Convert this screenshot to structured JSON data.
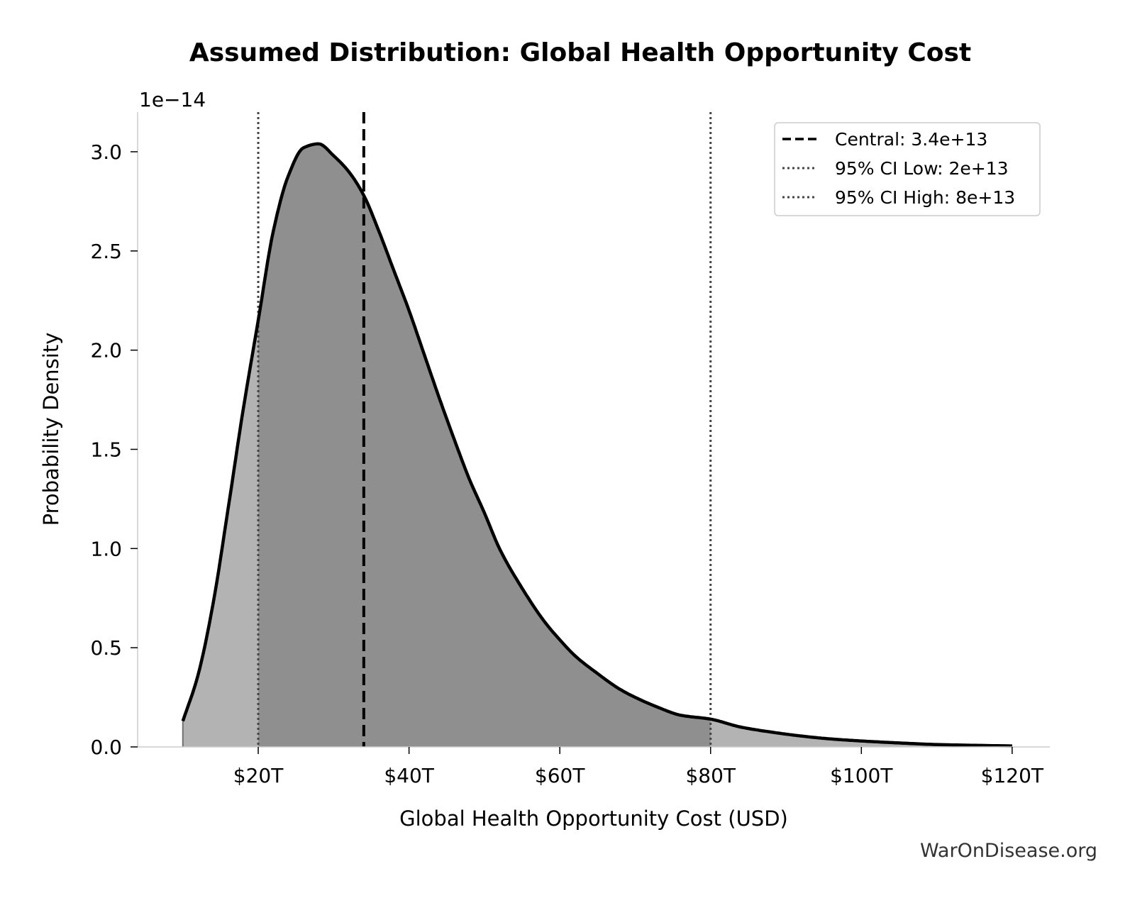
{
  "chart_data": {
    "type": "area",
    "title": "Assumed Distribution: Global Health Opportunity Cost",
    "xlabel": "Global Health Opportunity Cost (USD)",
    "ylabel": "Probability Density",
    "y_offset_label": "1e−14",
    "y_scale": 1e-14,
    "xlim": [
      4,
      125
    ],
    "ylim": [
      0,
      3.2
    ],
    "x_unit": "trillion USD",
    "x_ticks": [
      {
        "value": 20,
        "label": "$20T"
      },
      {
        "value": 40,
        "label": "$40T"
      },
      {
        "value": 60,
        "label": "$60T"
      },
      {
        "value": 80,
        "label": "$80T"
      },
      {
        "value": 100,
        "label": "$100T"
      },
      {
        "value": 120,
        "label": "$120T"
      }
    ],
    "y_ticks": [
      {
        "value": 0,
        "label": "0.0"
      },
      {
        "value": 0.5,
        "label": "0.5"
      },
      {
        "value": 1.0,
        "label": "1.0"
      },
      {
        "value": 1.5,
        "label": "1.5"
      },
      {
        "value": 2.0,
        "label": "2.0"
      },
      {
        "value": 2.5,
        "label": "2.5"
      },
      {
        "value": 3.0,
        "label": "3.0"
      }
    ],
    "series": [
      {
        "x": [
          10,
          12,
          14,
          16,
          18,
          20,
          22,
          24,
          26,
          28,
          30,
          32,
          34,
          36,
          38,
          40,
          42,
          44,
          46,
          48,
          50,
          52,
          55,
          58,
          60,
          62,
          65,
          68,
          70,
          73,
          76,
          80,
          84,
          88,
          92,
          96,
          100,
          105,
          110,
          115,
          120
        ],
        "y": [
          0.13,
          0.36,
          0.72,
          1.2,
          1.7,
          2.15,
          2.6,
          2.88,
          3.02,
          3.04,
          2.98,
          2.9,
          2.78,
          2.6,
          2.4,
          2.2,
          1.98,
          1.76,
          1.55,
          1.35,
          1.18,
          1.0,
          0.8,
          0.63,
          0.54,
          0.46,
          0.37,
          0.29,
          0.25,
          0.2,
          0.16,
          0.14,
          0.1,
          0.075,
          0.055,
          0.04,
          0.03,
          0.02,
          0.012,
          0.008,
          0.005
        ]
      }
    ],
    "shaded_interval": [
      20,
      80
    ],
    "vlines": [
      {
        "label": "Central: 3.4e+13",
        "value": 34,
        "style": "dashed",
        "color": "#000000"
      },
      {
        "label": "95% CI Low: 2e+13",
        "value": 20,
        "style": "dotted",
        "color": "#444444"
      },
      {
        "label": "95% CI High: 8e+13",
        "value": 80,
        "style": "dotted",
        "color": "#444444"
      }
    ],
    "legend_position": "top-right",
    "grid": false,
    "colors": {
      "curve": "#000000",
      "fill_outer": "#b3b3b3",
      "fill_ci": "#8f8f8f",
      "axis": "#cccccc"
    }
  },
  "footer": {
    "credit": "WarOnDisease.org"
  }
}
